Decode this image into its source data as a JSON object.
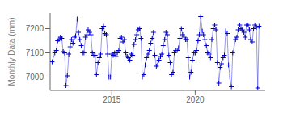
{
  "chart_data": {
    "type": "line",
    "y_label": "Monthly Data (mm)",
    "color": "#0000CD",
    "marker": "+",
    "line_style": "solid",
    "grid": false,
    "xlim": [
      2011.3,
      2024.2
    ],
    "xticks": [
      2015,
      2020
    ],
    "ylim": [
      6945,
      7265
    ],
    "yticks": [
      7000,
      7100,
      7200
    ],
    "x": [
      2011.42,
      2011.58,
      2011.67,
      2011.75,
      2011.83,
      2011.92,
      2012.0,
      2012.08,
      2012.17,
      2012.25,
      2012.33,
      2012.42,
      2012.5,
      2012.58,
      2012.67,
      2012.75,
      2012.83,
      2012.92,
      2013.0,
      2013.08,
      2013.17,
      2013.25,
      2013.33,
      2013.42,
      2013.5,
      2013.58,
      2013.67,
      2013.75,
      2013.83,
      2013.92,
      2014.0,
      2014.08,
      2014.17,
      2014.25,
      2014.33,
      2014.42,
      2014.5,
      2014.58,
      2014.67,
      2014.75,
      2014.83,
      2014.92,
      2015.0,
      2015.08,
      2015.17,
      2015.25,
      2015.33,
      2015.42,
      2015.5,
      2015.58,
      2015.67,
      2015.75,
      2015.83,
      2015.92,
      2016.0,
      2016.08,
      2016.17,
      2016.25,
      2016.33,
      2016.42,
      2016.5,
      2016.58,
      2016.67,
      2016.75,
      2016.83,
      2016.92,
      2017.0,
      2017.08,
      2017.17,
      2017.25,
      2017.33,
      2017.42,
      2017.5,
      2017.58,
      2017.67,
      2017.75,
      2017.83,
      2017.92,
      2018.0,
      2018.08,
      2018.17,
      2018.25,
      2018.33,
      2018.42,
      2018.5,
      2018.58,
      2018.67,
      2018.75,
      2018.83,
      2018.92,
      2019.0,
      2019.08,
      2019.17,
      2019.25,
      2019.33,
      2019.42,
      2019.5,
      2019.58,
      2019.67,
      2019.75,
      2019.83,
      2019.92,
      2020.0,
      2020.08,
      2020.17,
      2020.25,
      2020.33,
      2020.42,
      2020.5,
      2020.58,
      2020.67,
      2020.75,
      2020.83,
      2020.92,
      2021.0,
      2021.08,
      2021.17,
      2021.25,
      2021.33,
      2021.42,
      2021.5,
      2021.58,
      2021.67,
      2021.75,
      2021.83,
      2021.92,
      2022.0,
      2022.08,
      2022.17,
      2022.25,
      2022.33,
      2022.42,
      2022.5,
      2022.58,
      2022.67,
      2022.75,
      2022.83,
      2022.92,
      2023.0,
      2023.08,
      2023.17,
      2023.25,
      2023.33,
      2023.42,
      2023.5,
      2023.58,
      2023.67,
      2023.75,
      2023.83
    ],
    "values": [
      7063,
      7100,
      7110,
      7150,
      7155,
      7165,
      7160,
      7105,
      7100,
      6965,
      7005,
      7095,
      7125,
      7155,
      7140,
      7165,
      7170,
      7240,
      7185,
      7155,
      7130,
      7100,
      7100,
      7165,
      7175,
      7195,
      7185,
      7175,
      7100,
      7090,
      7090,
      7010,
      7060,
      7080,
      7095,
      7200,
      7210,
      7180,
      7175,
      7095,
      7000,
      7000,
      7095,
      7090,
      7100,
      7085,
      7100,
      7110,
      7160,
      7165,
      7145,
      7155,
      7100,
      7085,
      7080,
      7070,
      7095,
      7090,
      7135,
      7155,
      7175,
      7195,
      7200,
      7160,
      7000,
      7010,
      7050,
      7080,
      7095,
      7110,
      7140,
      7160,
      7185,
      7090,
      7045,
      7050,
      7070,
      7085,
      7095,
      7130,
      7155,
      7185,
      7175,
      7090,
      7060,
      7010,
      7020,
      7100,
      7110,
      7110,
      7120,
      7160,
      7200,
      7175,
      7165,
      7155,
      7155,
      7080,
      7000,
      7020,
      7070,
      7100,
      7100,
      7110,
      7150,
      7175,
      7250,
      7190,
      7175,
      7155,
      7130,
      7100,
      7095,
      7080,
      7155,
      7200,
      7215,
      7195,
      7060,
      6975,
      7040,
      7055,
      7080,
      7090,
      7190,
      7180,
      7050,
      7000,
      6960,
      7100,
      7120,
      7155,
      7165,
      7195,
      7215,
      7200,
      7195,
      7185,
      7165,
      7215,
      7215,
      7195,
      7155,
      7145,
      7200,
      7215,
      7205,
      6955,
      7210
    ]
  }
}
